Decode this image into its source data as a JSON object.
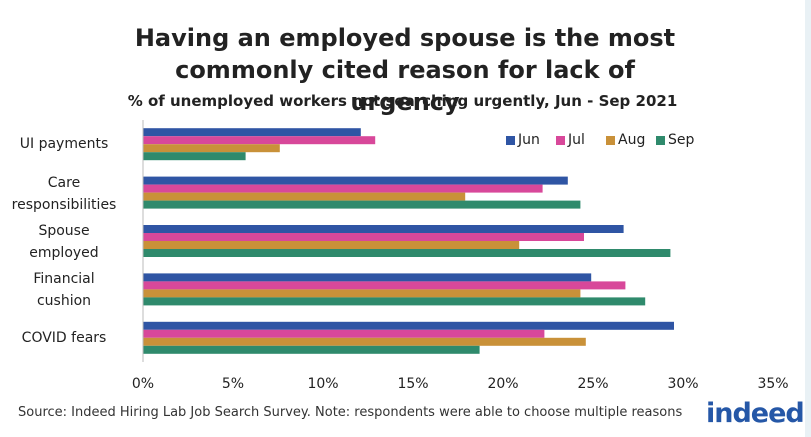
{
  "chart_data": {
    "type": "hbar",
    "title": "Having an employed spouse is the most commonly cited reason for lack of urgency",
    "subtitle": "% of unemployed workers not searching urgently, Jun - Sep 2021",
    "categories": [
      "UI payments",
      "Care\nresponsibilities",
      "Spouse\nemployed",
      "Financial\ncushion",
      "COVID fears"
    ],
    "series": [
      {
        "name": "Jun",
        "color": "#2f55a4",
        "values": [
          12.1,
          23.6,
          26.7,
          24.9,
          29.5
        ]
      },
      {
        "name": "Jul",
        "color": "#d8489a",
        "values": [
          12.9,
          22.2,
          24.5,
          26.8,
          22.3
        ]
      },
      {
        "name": "Aug",
        "color": "#c99139",
        "values": [
          7.6,
          17.9,
          20.9,
          24.3,
          24.6
        ]
      },
      {
        "name": "Sep",
        "color": "#2f8a6c",
        "values": [
          5.7,
          24.3,
          29.3,
          27.9,
          18.7
        ]
      }
    ],
    "xlim": [
      0,
      35
    ],
    "xticks": [
      {
        "value": 0,
        "label": "0%"
      },
      {
        "value": 5,
        "label": "5%"
      },
      {
        "value": 10,
        "label": "10%"
      },
      {
        "value": 15,
        "label": "15%"
      },
      {
        "value": 20,
        "label": "20%"
      },
      {
        "value": 25,
        "label": "25%"
      },
      {
        "value": 30,
        "label": "30%"
      },
      {
        "value": 35,
        "label": "35%"
      }
    ],
    "legend": "top-right",
    "source": "Source: Indeed Hiring Lab Job Search Survey. Note: respondents were able to choose multiple reasons",
    "logo": "indeed"
  }
}
